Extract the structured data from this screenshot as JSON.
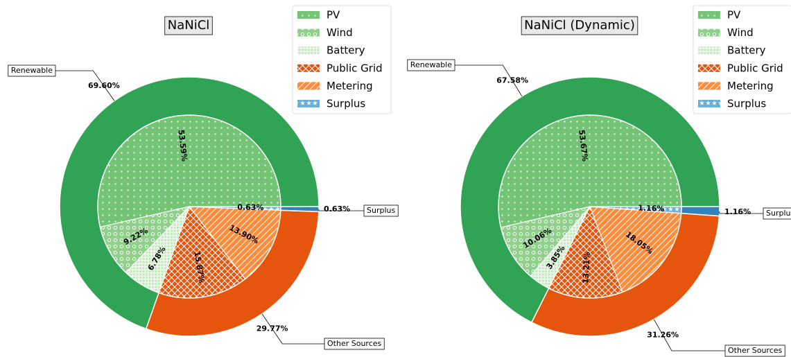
{
  "chart_data": [
    {
      "type": "pie",
      "title": "NaNiCl",
      "outer": {
        "categories": [
          "Renewable",
          "Other Sources",
          "Surplus"
        ],
        "values": [
          69.6,
          29.77,
          0.63
        ],
        "value_labels": [
          "69.60%",
          "29.77%",
          "0.63%"
        ],
        "colors": [
          "#31a354",
          "#e6550d",
          "#3182bd"
        ]
      },
      "inner": {
        "categories": [
          "PV",
          "Wind",
          "Battery",
          "Public Grid",
          "Metering",
          "Surplus"
        ],
        "values": [
          53.59,
          9.22,
          6.78,
          15.87,
          13.9,
          0.63
        ],
        "value_labels": [
          "53.59%",
          "9.22%",
          "6.78%",
          "15.87%",
          "13.90%",
          "0.63%"
        ],
        "colors": [
          "#74c476",
          "#8fd18a",
          "#c7e9c0",
          "#e6550d",
          "#fd8d3c",
          "#6baed6"
        ],
        "hatches": [
          "dots",
          "circles",
          "grid",
          "cross",
          "diagonal",
          "stars"
        ]
      }
    },
    {
      "type": "pie",
      "title": "NaNiCl (Dynamic)",
      "outer": {
        "categories": [
          "Renewable",
          "Other Sources",
          "Surplus"
        ],
        "values": [
          67.58,
          31.26,
          1.16
        ],
        "value_labels": [
          "67.58%",
          "31.26%",
          "1.16%"
        ],
        "colors": [
          "#31a354",
          "#e6550d",
          "#3182bd"
        ]
      },
      "inner": {
        "categories": [
          "PV",
          "Wind",
          "Battery",
          "Public Grid",
          "Metering",
          "Surplus"
        ],
        "values": [
          53.67,
          10.06,
          3.85,
          13.21,
          18.05,
          1.16
        ],
        "value_labels": [
          "53.67%",
          "10.06%",
          "3.85%",
          "13.21%",
          "18.05%",
          "1.16%"
        ],
        "colors": [
          "#74c476",
          "#8fd18a",
          "#c7e9c0",
          "#e6550d",
          "#fd8d3c",
          "#6baed6"
        ],
        "hatches": [
          "dots",
          "circles",
          "grid",
          "cross",
          "diagonal",
          "stars"
        ]
      }
    }
  ]
}
